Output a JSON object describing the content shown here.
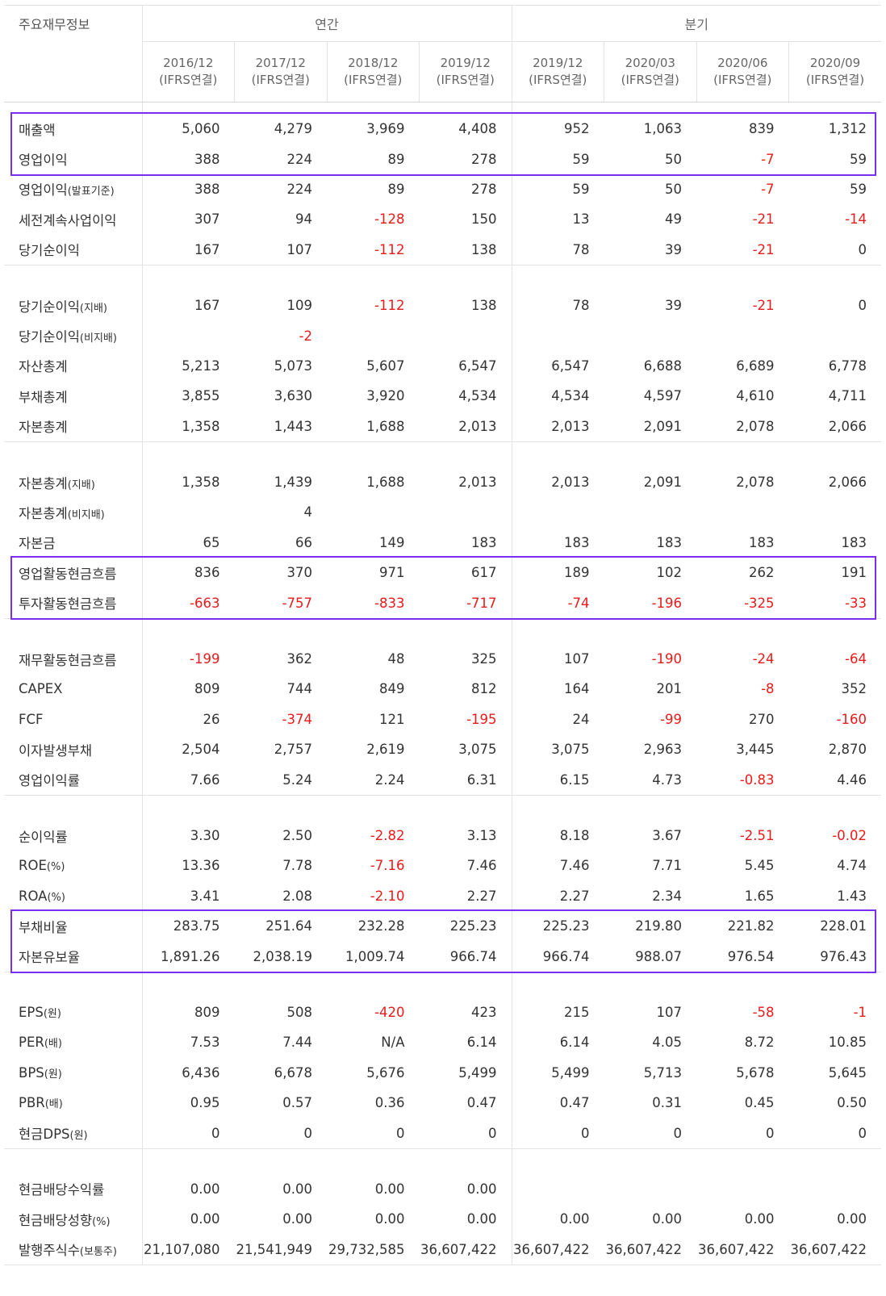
{
  "header": {
    "label": "주요재무정보",
    "annual": "연간",
    "quarter": "분기",
    "columns": [
      {
        "date": "2016/12",
        "basis": "(IFRS연결)"
      },
      {
        "date": "2017/12",
        "basis": "(IFRS연결)"
      },
      {
        "date": "2018/12",
        "basis": "(IFRS연결)"
      },
      {
        "date": "2019/12",
        "basis": "(IFRS연결)"
      },
      {
        "date": "2019/12",
        "basis": "(IFRS연결)"
      },
      {
        "date": "2020/03",
        "basis": "(IFRS연결)"
      },
      {
        "date": "2020/06",
        "basis": "(IFRS연결)"
      },
      {
        "date": "2020/09",
        "basis": "(IFRS연결)"
      }
    ]
  },
  "groups": [
    {
      "rows": [
        {
          "label": "매출액",
          "sub": "",
          "values": [
            "5,060",
            "4,279",
            "3,969",
            "4,408",
            "952",
            "1,063",
            "839",
            "1,312"
          ]
        },
        {
          "label": "영업이익",
          "sub": "",
          "values": [
            "388",
            "224",
            "89",
            "278",
            "59",
            "50",
            "-7",
            "59"
          ]
        },
        {
          "label": "영업이익",
          "sub": "(발표기준)",
          "values": [
            "388",
            "224",
            "89",
            "278",
            "59",
            "50",
            "-7",
            "59"
          ]
        },
        {
          "label": "세전계속사업이익",
          "sub": "",
          "values": [
            "307",
            "94",
            "-128",
            "150",
            "13",
            "49",
            "-21",
            "-14"
          ]
        },
        {
          "label": "당기순이익",
          "sub": "",
          "values": [
            "167",
            "107",
            "-112",
            "138",
            "78",
            "39",
            "-21",
            "0"
          ]
        }
      ]
    },
    {
      "rows": [
        {
          "label": "당기순이익",
          "sub": "(지배)",
          "values": [
            "167",
            "109",
            "-112",
            "138",
            "78",
            "39",
            "-21",
            "0"
          ]
        },
        {
          "label": "당기순이익",
          "sub": "(비지배)",
          "values": [
            "",
            "-2",
            "",
            "",
            "",
            "",
            "",
            ""
          ]
        },
        {
          "label": "자산총계",
          "sub": "",
          "values": [
            "5,213",
            "5,073",
            "5,607",
            "6,547",
            "6,547",
            "6,688",
            "6,689",
            "6,778"
          ]
        },
        {
          "label": "부채총계",
          "sub": "",
          "values": [
            "3,855",
            "3,630",
            "3,920",
            "4,534",
            "4,534",
            "4,597",
            "4,610",
            "4,711"
          ]
        },
        {
          "label": "자본총계",
          "sub": "",
          "values": [
            "1,358",
            "1,443",
            "1,688",
            "2,013",
            "2,013",
            "2,091",
            "2,078",
            "2,066"
          ]
        }
      ]
    },
    {
      "rows": [
        {
          "label": "자본총계",
          "sub": "(지배)",
          "values": [
            "1,358",
            "1,439",
            "1,688",
            "2,013",
            "2,013",
            "2,091",
            "2,078",
            "2,066"
          ]
        },
        {
          "label": "자본총계",
          "sub": "(비지배)",
          "values": [
            "",
            "4",
            "",
            "",
            "",
            "",
            "",
            ""
          ]
        },
        {
          "label": "자본금",
          "sub": "",
          "values": [
            "65",
            "66",
            "149",
            "183",
            "183",
            "183",
            "183",
            "183"
          ]
        },
        {
          "label": "영업활동현금흐름",
          "sub": "",
          "values": [
            "836",
            "370",
            "971",
            "617",
            "189",
            "102",
            "262",
            "191"
          ]
        },
        {
          "label": "투자활동현금흐름",
          "sub": "",
          "values": [
            "-663",
            "-757",
            "-833",
            "-717",
            "-74",
            "-196",
            "-325",
            "-33"
          ]
        }
      ]
    },
    {
      "rows": [
        {
          "label": "재무활동현금흐름",
          "sub": "",
          "values": [
            "-199",
            "362",
            "48",
            "325",
            "107",
            "-190",
            "-24",
            "-64"
          ]
        },
        {
          "label": "CAPEX",
          "sub": "",
          "values": [
            "809",
            "744",
            "849",
            "812",
            "164",
            "201",
            "-8",
            "352"
          ]
        },
        {
          "label": "FCF",
          "sub": "",
          "values": [
            "26",
            "-374",
            "121",
            "-195",
            "24",
            "-99",
            "270",
            "-160"
          ]
        },
        {
          "label": "이자발생부채",
          "sub": "",
          "values": [
            "2,504",
            "2,757",
            "2,619",
            "3,075",
            "3,075",
            "2,963",
            "3,445",
            "2,870"
          ]
        },
        {
          "label": "영업이익률",
          "sub": "",
          "values": [
            "7.66",
            "5.24",
            "2.24",
            "6.31",
            "6.15",
            "4.73",
            "-0.83",
            "4.46"
          ]
        }
      ]
    },
    {
      "rows": [
        {
          "label": "순이익률",
          "sub": "",
          "values": [
            "3.30",
            "2.50",
            "-2.82",
            "3.13",
            "8.18",
            "3.67",
            "-2.51",
            "-0.02"
          ]
        },
        {
          "label": "ROE",
          "sub": "(%)",
          "values": [
            "13.36",
            "7.78",
            "-7.16",
            "7.46",
            "7.46",
            "7.71",
            "5.45",
            "4.74"
          ]
        },
        {
          "label": "ROA",
          "sub": "(%)",
          "values": [
            "3.41",
            "2.08",
            "-2.10",
            "2.27",
            "2.27",
            "2.34",
            "1.65",
            "1.43"
          ]
        },
        {
          "label": "부채비율",
          "sub": "",
          "values": [
            "283.75",
            "251.64",
            "232.28",
            "225.23",
            "225.23",
            "219.80",
            "221.82",
            "228.01"
          ]
        },
        {
          "label": "자본유보율",
          "sub": "",
          "values": [
            "1,891.26",
            "2,038.19",
            "1,009.74",
            "966.74",
            "966.74",
            "988.07",
            "976.54",
            "976.43"
          ]
        }
      ]
    },
    {
      "rows": [
        {
          "label": "EPS",
          "sub": "(원)",
          "values": [
            "809",
            "508",
            "-420",
            "423",
            "215",
            "107",
            "-58",
            "-1"
          ]
        },
        {
          "label": "PER",
          "sub": "(배)",
          "values": [
            "7.53",
            "7.44",
            "N/A",
            "6.14",
            "6.14",
            "4.05",
            "8.72",
            "10.85"
          ]
        },
        {
          "label": "BPS",
          "sub": "(원)",
          "values": [
            "6,436",
            "6,678",
            "5,676",
            "5,499",
            "5,499",
            "5,713",
            "5,678",
            "5,645"
          ]
        },
        {
          "label": "PBR",
          "sub": "(배)",
          "values": [
            "0.95",
            "0.57",
            "0.36",
            "0.47",
            "0.47",
            "0.31",
            "0.45",
            "0.50"
          ]
        },
        {
          "label": "현금DPS",
          "sub": "(원)",
          "values": [
            "0",
            "0",
            "0",
            "0",
            "0",
            "0",
            "0",
            "0"
          ]
        }
      ]
    },
    {
      "rows": [
        {
          "label": "현금배당수익률",
          "sub": "",
          "values": [
            "0.00",
            "0.00",
            "0.00",
            "0.00",
            "",
            "",
            "",
            ""
          ]
        },
        {
          "label": "현금배당성향",
          "sub": "(%)",
          "values": [
            "0.00",
            "0.00",
            "0.00",
            "0.00",
            "0.00",
            "0.00",
            "0.00",
            "0.00"
          ]
        },
        {
          "label": "발행주식수",
          "sub": "(보통주)",
          "values": [
            "21,107,080",
            "21,541,949",
            "29,732,585",
            "36,607,422",
            "36,607,422",
            "36,607,422",
            "36,607,422",
            "36,607,422"
          ]
        }
      ]
    }
  ],
  "colors": {
    "negative": "#e81a1a",
    "highlight": "#7a2ff0",
    "text": "#333333"
  }
}
